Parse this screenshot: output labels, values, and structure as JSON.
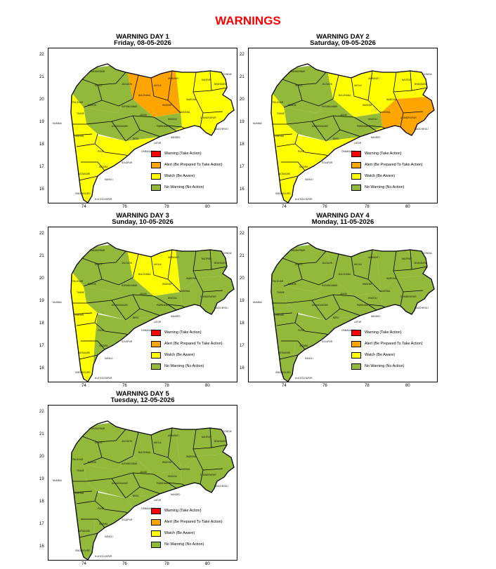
{
  "page": {
    "title": "WARNINGS"
  },
  "legend": [
    {
      "level": "warning",
      "label": "Warning (Take Action)",
      "color": "#ff0000"
    },
    {
      "level": "alert",
      "label": "Alert (Be Prepared To Take Action)",
      "color": "#ffa500"
    },
    {
      "level": "watch",
      "label": "Watch (Be Aware)",
      "color": "#ffff00"
    },
    {
      "level": "none",
      "label": "No Warning (No Action)",
      "color": "#93b93b"
    }
  ],
  "axes": {
    "x_ticks": [
      "74",
      "76",
      "78",
      "80"
    ],
    "y_ticks": [
      "22",
      "21",
      "20",
      "19",
      "18",
      "17",
      "16"
    ]
  },
  "map_labels": {
    "mumbai": "MUMBAI",
    "dhule": "DHULE",
    "jalgaon": "JALGAON",
    "nagpur": "NAGPUR",
    "pune": "PUNE",
    "satara": "SATARA",
    "kolhapur": "ts of KOLHAPUR"
  },
  "panels": [
    {
      "title": "WARNING DAY 1",
      "date": "Friday, 08-05-2026",
      "zones": {
        "west": "watch",
        "northwest": "none",
        "central": "none",
        "north": "alert",
        "northeast": "watch",
        "east": "watch",
        "southeast": "watch",
        "south": "watch"
      }
    },
    {
      "title": "WARNING DAY 2",
      "date": "Saturday, 09-05-2026",
      "zones": {
        "west": "watch",
        "northwest": "none",
        "central": "none",
        "north": "watch",
        "northeast": "watch",
        "east": "alert",
        "southeast": "watch",
        "south": "watch"
      }
    },
    {
      "title": "WARNING DAY 3",
      "date": "Sunday, 10-05-2026",
      "zones": {
        "west": "watch",
        "northwest": "none",
        "central": "none",
        "north": "watch",
        "northeast": "none",
        "east": "none",
        "southeast": "none",
        "south": "none"
      }
    },
    {
      "title": "WARNING DAY 4",
      "date": "Monday, 11-05-2026",
      "zones": {
        "west": "none",
        "northwest": "none",
        "central": "none",
        "north": "none",
        "northeast": "none",
        "east": "none",
        "southeast": "none",
        "south": "none"
      }
    },
    {
      "title": "WARNING DAY 5",
      "date": "Tuesday, 12-05-2026",
      "zones": {
        "west": "none",
        "northwest": "none",
        "central": "none",
        "north": "none",
        "northeast": "none",
        "east": "none",
        "southeast": "none",
        "south": "none"
      }
    }
  ]
}
